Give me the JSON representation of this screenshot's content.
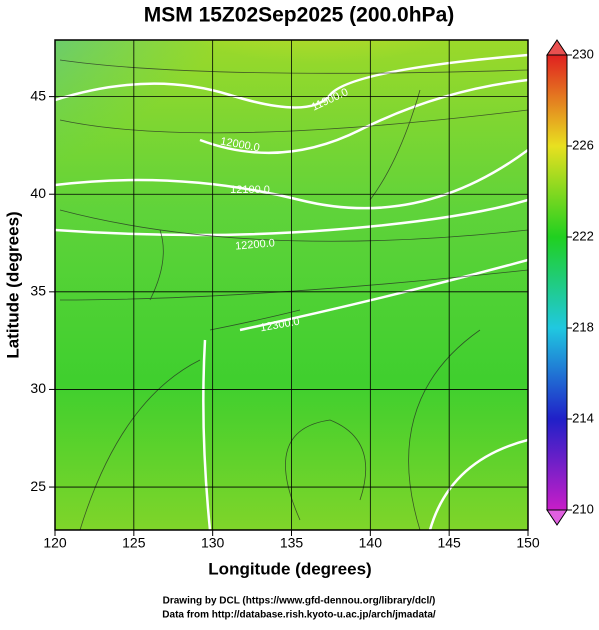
{
  "chart_data": {
    "type": "map",
    "title": "MSM 15Z02Sep2025 (200.0hPa)",
    "x_label": "Longitude (degrees)",
    "y_label": "Latitude  (degrees)",
    "xlim": [
      120,
      150
    ],
    "ylim": [
      22.8,
      47.9
    ],
    "xticks": [
      120,
      125,
      130,
      135,
      140,
      145,
      150
    ],
    "yticks": [
      25,
      30,
      35,
      40,
      45
    ],
    "grid": true,
    "colorbar": {
      "lim": [
        210,
        230
      ],
      "ticks": [
        210,
        214,
        218,
        222,
        226,
        230
      ]
    },
    "contour_labels": [
      "11900.0",
      "12000.0",
      "12100.0",
      "12200.0",
      "12300.0"
    ],
    "credits": [
      "Drawing by DCL (https://www.gfd-dennou.org/library/dcl/)",
      "Data from http://database.rish.kyoto-u.ac.jp/arch/jmadata/"
    ]
  }
}
